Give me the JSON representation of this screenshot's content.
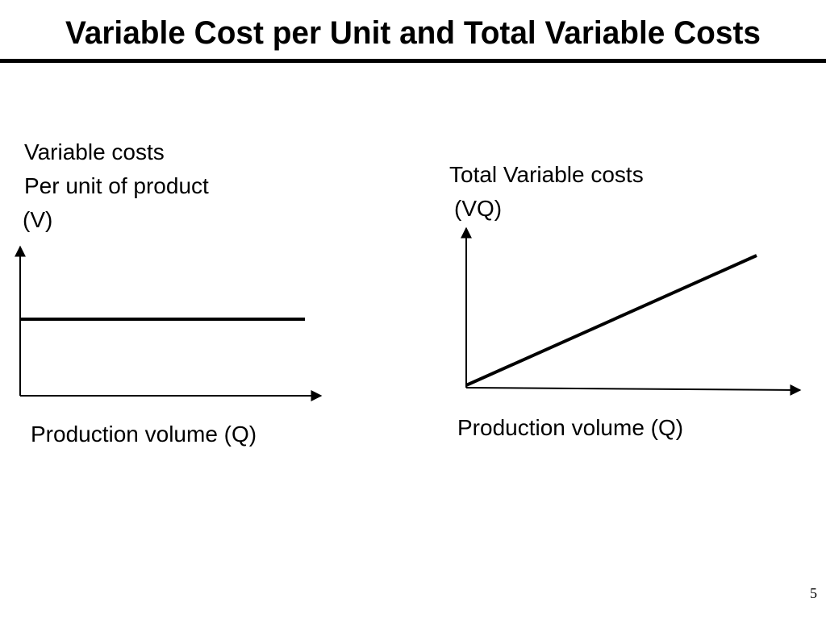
{
  "header": {
    "title": "Variable Cost per Unit and Total Variable Costs"
  },
  "diagrams": [
    {
      "y_label": [
        "Variable costs",
        "Per unit of product",
        "(V)"
      ],
      "x_label": "Production volume (Q)"
    },
    {
      "y_label": [
        "Total Variable costs",
        "(VQ)"
      ],
      "x_label": "Production volume (Q)"
    }
  ],
  "footer": {
    "page_number": "5"
  }
}
